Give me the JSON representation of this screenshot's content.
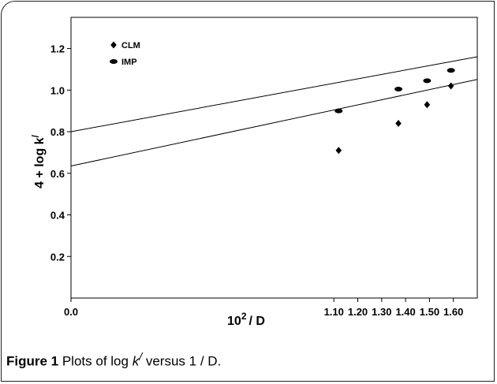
{
  "caption": {
    "label": "Figure 1",
    "pre": " Plots of log ",
    "k": "k",
    "prime": "/",
    "post": " versus 1 / D."
  },
  "chart_data": {
    "type": "scatter",
    "title": "",
    "xlabel": "10",
    "xlabel_sup": "2",
    "xlabel_suffix": "/ D",
    "ylabel": "4 + log k",
    "ylabel_sup": "/",
    "xlim": [
      0.0,
      1.7
    ],
    "ylim": [
      0.0,
      1.35
    ],
    "grid": false,
    "legend": "top-left",
    "x_ticks": [
      0.0,
      1.1,
      1.2,
      1.3,
      1.4,
      1.5,
      1.6
    ],
    "x_tick_labels": [
      "0.0",
      "1.10",
      "1.20",
      "1.30",
      "1.40",
      "1.50",
      "1.60"
    ],
    "y_ticks": [
      0.2,
      0.4,
      0.6,
      0.8,
      1.0,
      1.2
    ],
    "y_tick_labels": [
      "0.2",
      "0.4",
      "0.6",
      "0.8",
      "1.0",
      "1.2"
    ],
    "series": [
      {
        "name": "CLM",
        "marker": "diamond",
        "x": [
          1.12,
          1.37,
          1.49,
          1.59
        ],
        "y": [
          0.71,
          0.84,
          0.93,
          1.02
        ],
        "fit": {
          "intercept": 0.635,
          "slope": 0.245
        }
      },
      {
        "name": "IMP",
        "marker": "ellipse",
        "x": [
          1.12,
          1.37,
          1.49,
          1.59
        ],
        "y": [
          0.9,
          1.005,
          1.045,
          1.095
        ],
        "fit": {
          "intercept": 0.8,
          "slope": 0.212
        }
      }
    ]
  }
}
